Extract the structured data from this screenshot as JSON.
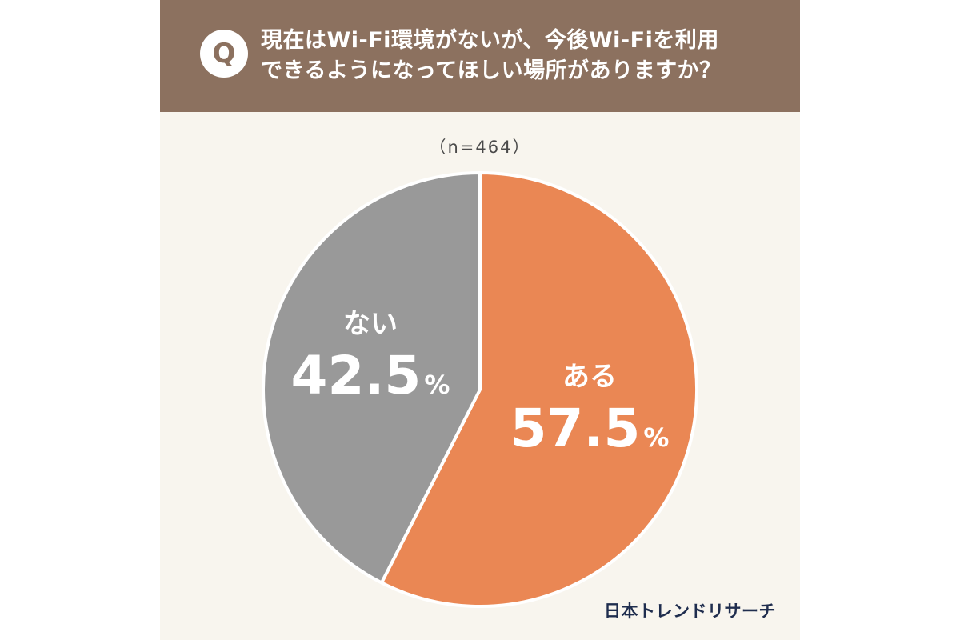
{
  "header": {
    "badge": "Q",
    "question_line1": "現在はWi-Fi環境がないが、今後Wi-Fiを利用",
    "question_line2": "できるようになってほしい場所がありますか？"
  },
  "sample_size": "（n=464）",
  "brand": "日本トレンドリサーチ",
  "colors": {
    "header_bg": "#8c715f",
    "card_bg": "#f8f5ee",
    "aru": "#ea8754",
    "nai": "#999999",
    "brand": "#1f2d4e"
  },
  "chart_data": {
    "type": "pie",
    "title": "",
    "n": 464,
    "unit": "%",
    "slices": [
      {
        "label": "ある",
        "value": 57.5,
        "display": "57.5",
        "color": "#ea8754"
      },
      {
        "label": "ない",
        "value": 42.5,
        "display": "42.5",
        "color": "#999999"
      }
    ]
  }
}
